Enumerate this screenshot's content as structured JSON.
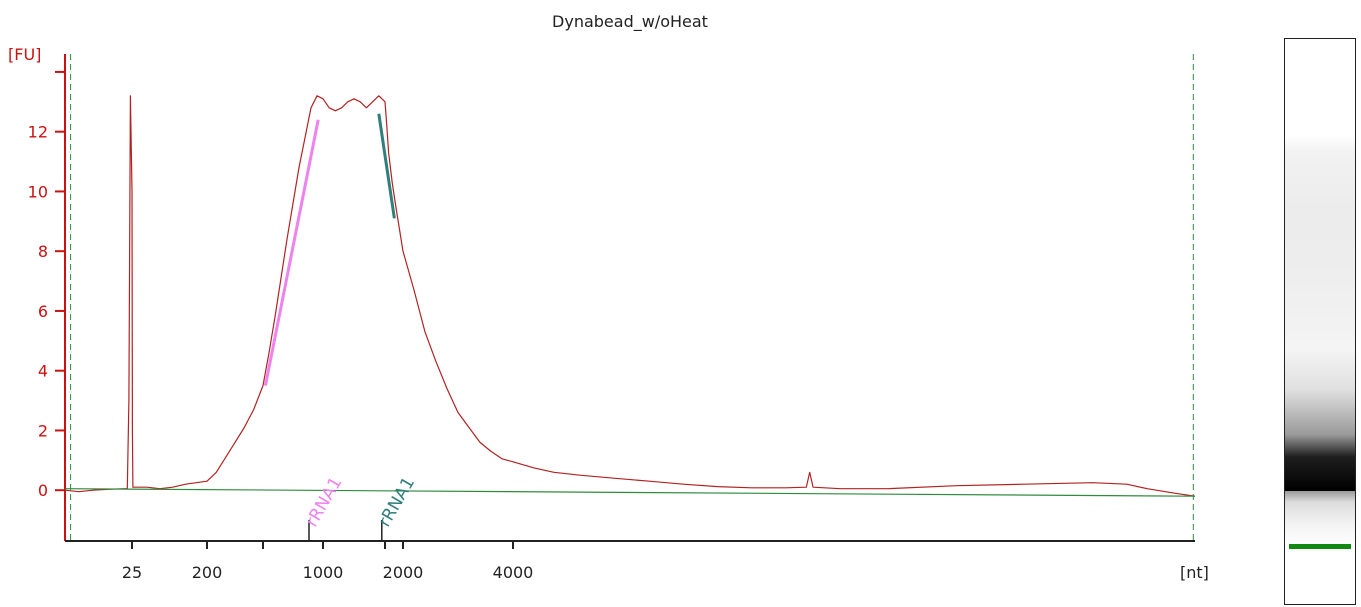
{
  "chart_data": {
    "type": "line",
    "title": "Dynabead_w/oHeat",
    "ylabel": "[FU]",
    "xlabel": "[nt]",
    "ylim": [
      -1.7,
      14.6
    ],
    "yticks": [
      0,
      2,
      4,
      6,
      8,
      10,
      12
    ],
    "x_axis_ticks": [
      {
        "label": "25",
        "value": 25
      },
      {
        "label": "200",
        "value": 200
      },
      {
        "label": "",
        "value": 500
      },
      {
        "label": "1000",
        "value": 1000
      },
      {
        "label": "",
        "value": 1500
      },
      {
        "label": "2000",
        "value": 2000
      },
      {
        "label": "4000",
        "value": 4000
      }
    ],
    "series": [
      {
        "color": "#b22222",
        "points": [
          [
            -20,
            0.0
          ],
          [
            -10,
            -0.05
          ],
          [
            0,
            0.0
          ],
          [
            10,
            0.03
          ],
          [
            20,
            0.05
          ],
          [
            22,
            0.05
          ],
          [
            23,
            3.0
          ],
          [
            24,
            13.2
          ],
          [
            25,
            10.0
          ],
          [
            26,
            2.0
          ],
          [
            27,
            0.1
          ],
          [
            35,
            0.1
          ],
          [
            60,
            0.1
          ],
          [
            90,
            0.05
          ],
          [
            120,
            0.1
          ],
          [
            150,
            0.2
          ],
          [
            200,
            0.3
          ],
          [
            250,
            0.6
          ],
          [
            300,
            1.1
          ],
          [
            350,
            1.6
          ],
          [
            400,
            2.1
          ],
          [
            450,
            2.7
          ],
          [
            500,
            3.5
          ],
          [
            550,
            4.6
          ],
          [
            600,
            5.8
          ],
          [
            650,
            7.1
          ],
          [
            700,
            8.4
          ],
          [
            750,
            9.6
          ],
          [
            800,
            10.8
          ],
          [
            850,
            11.8
          ],
          [
            900,
            12.8
          ],
          [
            950,
            13.2
          ],
          [
            1000,
            13.1
          ],
          [
            1050,
            12.8
          ],
          [
            1100,
            12.7
          ],
          [
            1150,
            12.8
          ],
          [
            1200,
            13.0
          ],
          [
            1250,
            13.1
          ],
          [
            1300,
            13.0
          ],
          [
            1350,
            12.8
          ],
          [
            1400,
            13.0
          ],
          [
            1450,
            13.2
          ],
          [
            1500,
            13.0
          ],
          [
            1550,
            12.2
          ],
          [
            1600,
            11.3
          ],
          [
            1700,
            10.3
          ],
          [
            1800,
            9.5
          ],
          [
            2000,
            8.0
          ],
          [
            2200,
            6.7
          ],
          [
            2400,
            5.3
          ],
          [
            2600,
            4.3
          ],
          [
            2800,
            3.4
          ],
          [
            3000,
            2.6
          ],
          [
            3200,
            2.1
          ],
          [
            3400,
            1.6
          ],
          [
            3600,
            1.3
          ],
          [
            3800,
            1.05
          ],
          [
            4000,
            0.95
          ],
          [
            4300,
            0.75
          ],
          [
            4600,
            0.6
          ],
          [
            5000,
            0.5
          ],
          [
            5500,
            0.4
          ],
          [
            6000,
            0.3
          ],
          [
            6500,
            0.2
          ],
          [
            7000,
            0.12
          ],
          [
            7500,
            0.08
          ],
          [
            8000,
            0.08
          ],
          [
            8300,
            0.1
          ],
          [
            8350,
            0.6
          ],
          [
            8400,
            0.1
          ],
          [
            8800,
            0.05
          ],
          [
            9500,
            0.05
          ],
          [
            10500,
            0.15
          ],
          [
            11500,
            0.2
          ],
          [
            12500,
            0.25
          ],
          [
            13000,
            0.2
          ],
          [
            13300,
            0.05
          ],
          [
            13700,
            -0.1
          ],
          [
            14000,
            -0.2
          ]
        ]
      },
      {
        "color": "#2e8b3e",
        "points": [
          [
            -20,
            0.05
          ],
          [
            14000,
            -0.2
          ]
        ]
      }
    ],
    "fit_lines": [
      {
        "color": "#ee82ee",
        "points": [
          [
            520,
            3.5
          ],
          [
            960,
            12.4
          ]
        ]
      },
      {
        "color": "#2f7f7a",
        "points": [
          [
            1450,
            12.6
          ],
          [
            1760,
            9.1
          ]
        ]
      }
    ],
    "markers": [
      {
        "color": "#2e8b3e",
        "x": -16
      },
      {
        "color": "#2e8b3e",
        "x": 13975
      }
    ],
    "peak_labels": [
      {
        "text": "rRNA1",
        "color": "#ee82ee",
        "x": 1000
      },
      {
        "text": "rRNA1",
        "color": "#2f7f7a",
        "x": 1800
      }
    ],
    "gel": {
      "band_color": "#000000",
      "marker_color": "#118811",
      "band_center": 0.8
    }
  }
}
